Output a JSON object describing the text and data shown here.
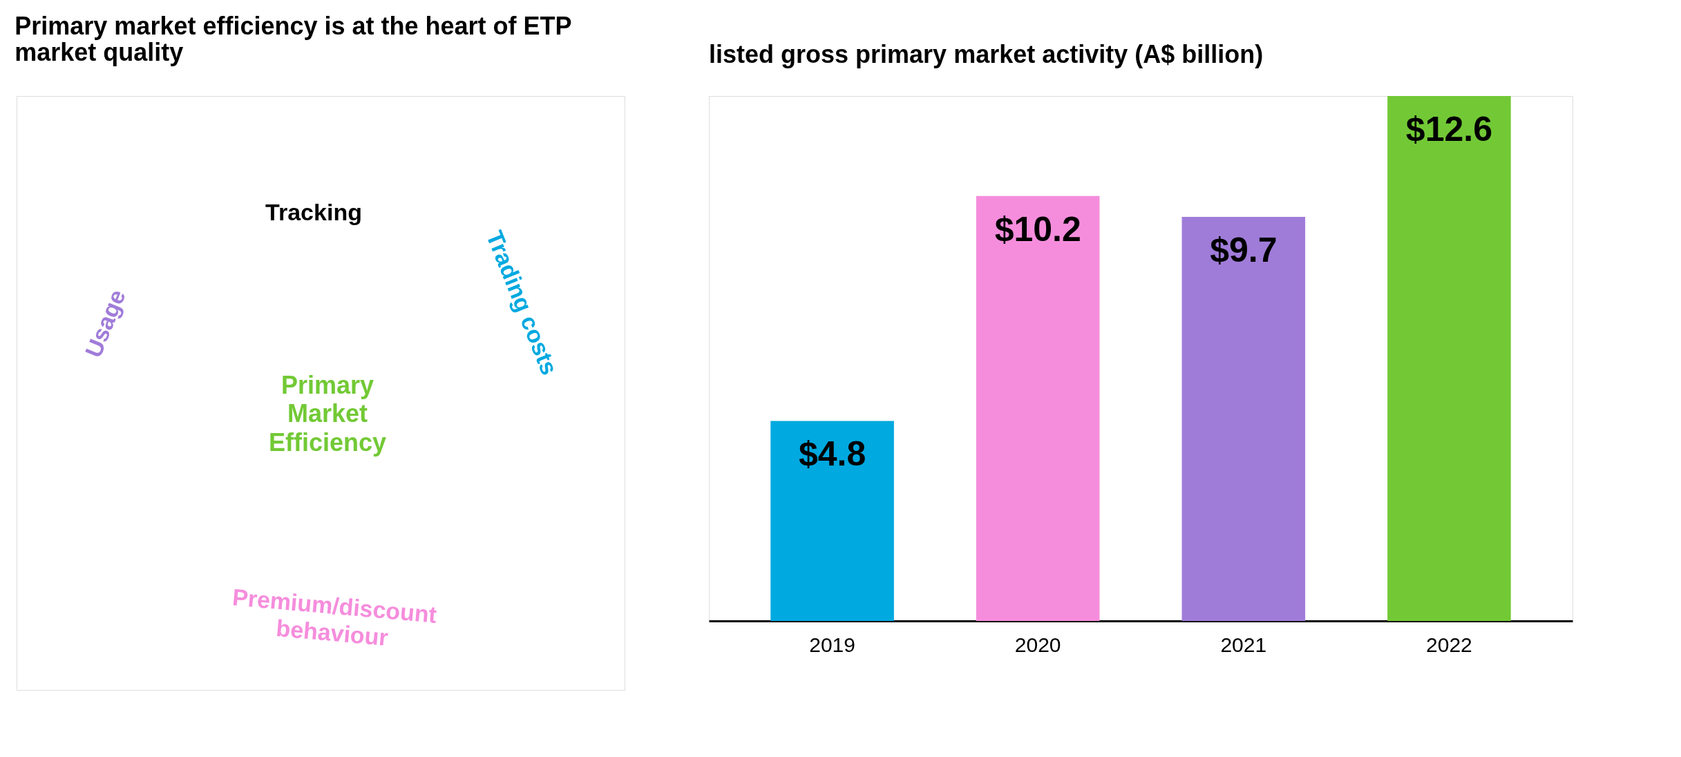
{
  "chart_data": [
    {
      "type": "other",
      "title": "Primary market efficiency is at the heart of ETP market quality",
      "annotations": [
        "Usage",
        "Trading costs",
        "Tracking",
        "Primary Market Efficiency",
        "Premium/discount behaviour"
      ]
    },
    {
      "type": "bar",
      "title": "listed gross primary market activity (A$ billion)",
      "categories": [
        "2019",
        "2020",
        "2021",
        "2022"
      ],
      "values": [
        4.8,
        10.2,
        9.7,
        12.6
      ],
      "colors": [
        "#00a9e0",
        "#f58ddc",
        "#a07cd9",
        "#72c935"
      ],
      "value_labels": [
        "$4.8",
        "$10.2",
        "$9.7",
        "$12.6"
      ]
    }
  ]
}
